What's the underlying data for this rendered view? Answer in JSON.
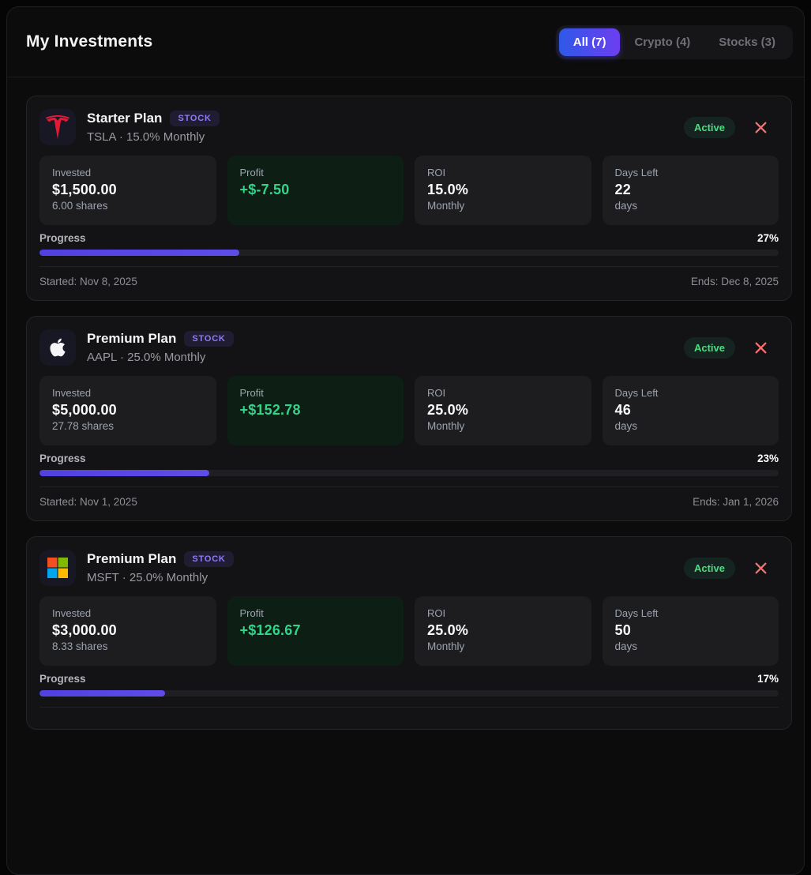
{
  "header": {
    "title": "My Investments",
    "tabs": [
      {
        "label": "All (7)",
        "active": true
      },
      {
        "label": "Crypto (4)",
        "active": false
      },
      {
        "label": "Stocks (3)",
        "active": false
      }
    ]
  },
  "labels": {
    "invested": "Invested",
    "profit": "Profit",
    "roi": "ROI",
    "days_left": "Days Left",
    "progress": "Progress"
  },
  "colors": {
    "tab_gradient_start": "#2e59e8",
    "tab_gradient_end": "#6d3ef0",
    "progress_fill": "#5646e4",
    "profit_green": "#31d58a",
    "active_green": "#4ade80",
    "close_red": "#f87171",
    "stock_badge_text": "#8f7bf7",
    "tesla_red": "#e31937",
    "msft_red": "#f25022",
    "msft_green": "#7fba00",
    "msft_blue": "#00a4ef",
    "msft_yellow": "#ffb900"
  },
  "cards": [
    {
      "icon": "tesla-logo",
      "plan": "Starter Plan",
      "badge": "STOCK",
      "subtitle": "TSLA · 15.0% Monthly",
      "status": "Active",
      "invested": "$1,500.00",
      "shares": "6.00 shares",
      "profit": "+$-7.50",
      "roi": "15.0%",
      "roi_sub": "Monthly",
      "days": "22",
      "days_sub": "days",
      "progress_pct": "27%",
      "progress_value": 27,
      "started": "Started: Nov 8, 2025",
      "ends": "Ends: Dec 8, 2025"
    },
    {
      "icon": "apple-logo",
      "plan": "Premium Plan",
      "badge": "STOCK",
      "subtitle": "AAPL · 25.0% Monthly",
      "status": "Active",
      "invested": "$5,000.00",
      "shares": "27.78 shares",
      "profit": "+$152.78",
      "roi": "25.0%",
      "roi_sub": "Monthly",
      "days": "46",
      "days_sub": "days",
      "progress_pct": "23%",
      "progress_value": 23,
      "started": "Started: Nov 1, 2025",
      "ends": "Ends: Jan 1, 2026"
    },
    {
      "icon": "microsoft-logo",
      "plan": "Premium Plan",
      "badge": "STOCK",
      "subtitle": "MSFT · 25.0% Monthly",
      "status": "Active",
      "invested": "$3,000.00",
      "shares": "8.33 shares",
      "profit": "+$126.67",
      "roi": "25.0%",
      "roi_sub": "Monthly",
      "days": "50",
      "days_sub": "days",
      "progress_pct": "17%",
      "progress_value": 17,
      "started": "",
      "ends": ""
    }
  ]
}
